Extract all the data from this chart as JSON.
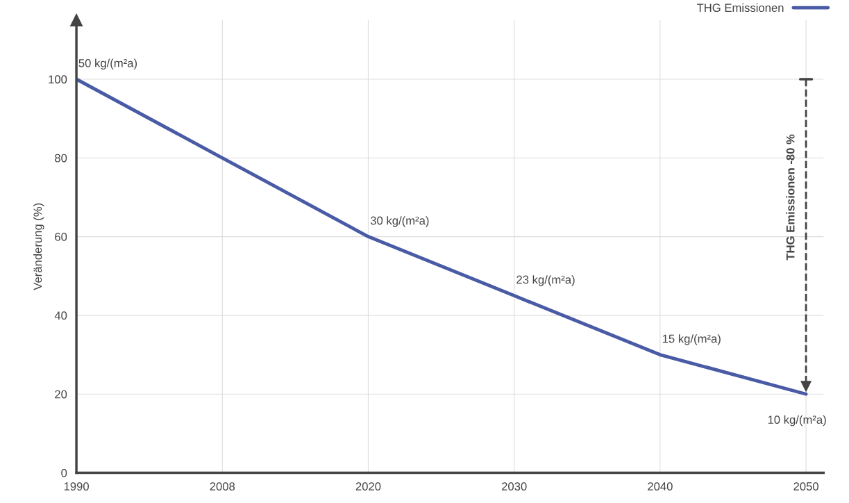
{
  "chart_data": {
    "type": "line",
    "ylabel": "Veränderung (%)",
    "categories": [
      "1990",
      "2008",
      "2020",
      "2030",
      "2040",
      "2050"
    ],
    "series": [
      {
        "name": "THG Emissionen",
        "color": "#4a5ba6",
        "values": [
          100,
          80,
          60,
          45,
          30,
          20
        ]
      }
    ],
    "ylim": [
      0,
      115
    ],
    "yticks": [
      0,
      20,
      40,
      60,
      80,
      100
    ],
    "grid": true,
    "legend": "top right",
    "marker": "none",
    "line_style": "solid",
    "annotations": [
      {
        "text": "50 kg/(m²a)",
        "x": "1990",
        "y": 100
      },
      {
        "text": "30 kg/(m²a)",
        "x": "2020",
        "y": 60
      },
      {
        "text": "23 kg/(m²a)",
        "x": "2030",
        "y": 45
      },
      {
        "text": "15 kg/(m²a)",
        "x": "2040",
        "y": 30
      },
      {
        "text": "10 kg/(m²a)",
        "x": "2050",
        "y": 20
      },
      "THG Emissionen -80 %"
    ]
  }
}
